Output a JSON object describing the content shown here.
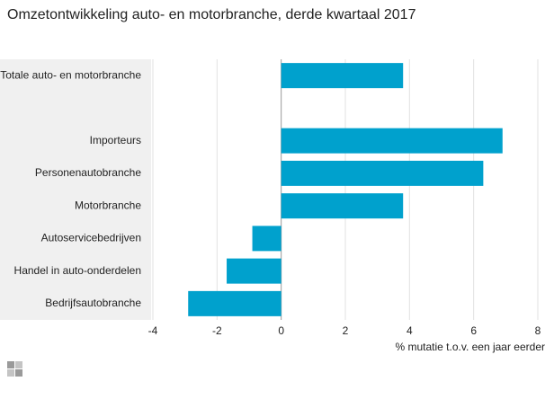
{
  "chart_data": {
    "type": "hbar",
    "title": "Omzetontwikkeling auto- en motorbranche, derde kwartaal 2017",
    "categories": [
      "Totale auto- en motorbranche",
      null,
      "Importeurs",
      "Personenautobranche",
      "Motorbranche",
      "Autoservicebedrijven",
      "Handel in auto-onderdelen",
      "Bedrijfsautobranche"
    ],
    "values": [
      3.8,
      null,
      6.9,
      6.3,
      3.8,
      -0.9,
      -1.7,
      -2.9
    ],
    "color": "#00a1cd",
    "xlabel": "% mutatie t.o.v. een jaar eerder",
    "xlim": [
      -4,
      8
    ],
    "xticks": [
      -4,
      -2,
      0,
      2,
      4,
      6,
      8
    ],
    "grid": true
  }
}
